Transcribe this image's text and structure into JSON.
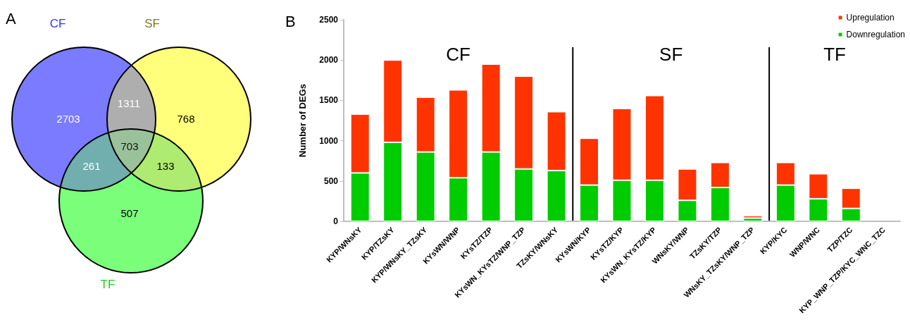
{
  "chart_data": [
    {
      "type": "other",
      "title": "A",
      "categories": [
        "CF",
        "SF",
        "TF"
      ],
      "colors": [
        "#7b7bff",
        "#ffff7b",
        "#7bff7b"
      ],
      "annotations": [
        "2703",
        "768",
        "507",
        "1311",
        "261",
        "133",
        "703"
      ]
    },
    {
      "type": "bar",
      "title": "B",
      "ylabel": "Number of DEGs",
      "stacked": true,
      "legend": "top right",
      "grid": false,
      "categories": [
        "KYP/WNsKY",
        "KYP/TZsKY",
        "KYP/WNsKY_TZsKY",
        "KYsWN/WNP",
        "KYsTZ/TZP",
        "KYsWN_KYsTZ/WNP_TZP",
        "TZsKY/WNsKY",
        "KYsWN/KYP",
        "KYsTZ/KYP",
        "KYsWN_KYsTZ/KYP",
        "WNsKY/WNP",
        "TZsKY/TZP",
        "WNsKY_TZsKY/WNP_TZP",
        "KYP/KYC",
        "WNP/WNC",
        "TZP/TZC",
        "KYP_WNP_TZP/KYC_WNC_TZC"
      ],
      "series": [
        {
          "name": "Downregulation",
          "color": "#00cc00",
          "values": [
            600,
            980,
            860,
            540,
            860,
            650,
            630,
            450,
            510,
            510,
            260,
            420,
            40,
            450,
            280,
            160,
            null
          ]
        },
        {
          "name": "Upregulation",
          "color": "#ff3300",
          "values": [
            730,
            1020,
            680,
            1090,
            1090,
            1150,
            730,
            580,
            890,
            1050,
            390,
            310,
            30,
            280,
            310,
            250,
            null
          ]
        }
      ],
      "ylim": [
        0,
        2500
      ],
      "yticks": [
        0,
        500,
        1000,
        1500,
        2000,
        2500
      ],
      "annotations": [
        "CF",
        "SF",
        "TF"
      ]
    }
  ]
}
